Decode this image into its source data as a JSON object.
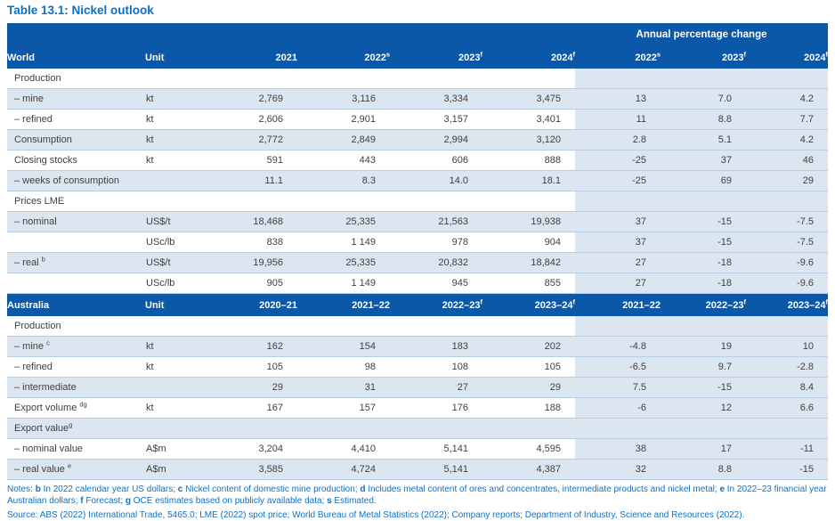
{
  "page": {
    "title": "Table 13.1: Nickel outlook"
  },
  "colors": {
    "header_blue": "#0b57a8",
    "row_shade": "#dce6f1",
    "row_border": "#b9cde5",
    "title_blue": "#0d6fc5",
    "notes_blue": "#1270c4",
    "body_text": "#3f3f3f"
  },
  "table": {
    "apc_header": "Annual percentage change",
    "world": {
      "name_header": "World",
      "unit_header": "Unit",
      "year_headers": [
        {
          "text": "2021"
        },
        {
          "text": "2022",
          "sup": "s"
        },
        {
          "text": "2023",
          "sup": "f"
        },
        {
          "text": "2024",
          "sup": "f"
        }
      ],
      "pct_headers": [
        {
          "text": "2022",
          "sup": "s"
        },
        {
          "text": "2023",
          "sup": "f"
        },
        {
          "text": "2024",
          "sup": "f"
        }
      ],
      "rows": [
        {
          "section": true,
          "label": "Production"
        },
        {
          "label": "– mine",
          "unit": "kt",
          "values": [
            "2,769",
            "3,116",
            "3,334",
            "3,475"
          ],
          "pct": [
            "13",
            "7.0",
            "4.2"
          ]
        },
        {
          "label": "– refined",
          "unit": "kt",
          "values": [
            "2,606",
            "2,901",
            "3,157",
            "3,401"
          ],
          "pct": [
            "11",
            "8.8",
            "7.7"
          ]
        },
        {
          "label": "Consumption",
          "unit": "kt",
          "values": [
            "2,772",
            "2,849",
            "2,994",
            "3,120"
          ],
          "pct": [
            "2.8",
            "5.1",
            "4.2"
          ]
        },
        {
          "label": "Closing stocks",
          "unit": "kt",
          "values": [
            "591",
            "443",
            "606",
            "888"
          ],
          "pct": [
            "-25",
            "37",
            "46"
          ]
        },
        {
          "label": "– weeks of consumption",
          "unit": "",
          "values": [
            "11.1",
            "8.3",
            "14.0",
            "18.1"
          ],
          "pct": [
            "-25",
            "69",
            "29"
          ]
        },
        {
          "section": true,
          "label": "Prices LME"
        },
        {
          "label": "– nominal",
          "unit": "US$/t",
          "values": [
            "18,468",
            "25,335",
            "21,563",
            "19,938"
          ],
          "pct": [
            "37",
            "-15",
            "-7.5"
          ]
        },
        {
          "label": "",
          "unit": "USc/lb",
          "values": [
            "838",
            "1 149",
            "978",
            "904"
          ],
          "pct": [
            "37",
            "-15",
            "-7.5"
          ]
        },
        {
          "label": "– real ",
          "sup": "b",
          "unit": "US$/t",
          "values": [
            "19,956",
            "25,335",
            "20,832",
            "18,842"
          ],
          "pct": [
            "27",
            "-18",
            "-9.6"
          ]
        },
        {
          "label": "",
          "unit": "USc/lb",
          "values": [
            "905",
            "1 149",
            "945",
            "855"
          ],
          "pct": [
            "27",
            "-18",
            "-9.6"
          ]
        }
      ]
    },
    "australia": {
      "name_header": "Australia",
      "unit_header": "Unit",
      "year_headers": [
        {
          "text": "2020–21"
        },
        {
          "text": "2021–22"
        },
        {
          "text": "2022–23",
          "sup": "f"
        },
        {
          "text": "2023–24",
          "sup": "f"
        }
      ],
      "pct_headers": [
        {
          "text": "2021–22"
        },
        {
          "text": "2022–23",
          "sup": "f"
        },
        {
          "text": "2023–24",
          "sup": "f"
        }
      ],
      "rows": [
        {
          "section": true,
          "label": "Production"
        },
        {
          "label": "– mine ",
          "sup": "c",
          "unit": "kt",
          "values": [
            "162",
            "154",
            "183",
            "202"
          ],
          "pct": [
            "-4.8",
            "19",
            "10"
          ]
        },
        {
          "label": "– refined",
          "unit": "kt",
          "values": [
            "105",
            "98",
            "108",
            "105"
          ],
          "pct": [
            "-6.5",
            "9.7",
            "-2.8"
          ]
        },
        {
          "label": "– intermediate",
          "unit": "",
          "values": [
            "29",
            "31",
            "27",
            "29"
          ],
          "pct": [
            "7.5",
            "-15",
            "8.4"
          ]
        },
        {
          "label": "Export volume ",
          "sup": "dg",
          "unit": "kt",
          "values": [
            "167",
            "157",
            "176",
            "188"
          ],
          "pct": [
            "-6",
            "12",
            "6.6"
          ]
        },
        {
          "section": true,
          "label": "Export value",
          "sup": "g"
        },
        {
          "label": "– nominal value",
          "unit": "A$m",
          "values": [
            "3,204",
            "4,410",
            "5,141",
            "4,595"
          ],
          "pct": [
            "38",
            "17",
            "-11"
          ]
        },
        {
          "label": "– real value ",
          "sup": "e",
          "unit": "A$m",
          "values": [
            "3,585",
            "4,724",
            "5,141",
            "4,387"
          ],
          "pct": [
            "32",
            "8.8",
            "-15"
          ]
        }
      ]
    }
  },
  "notes": {
    "segments": [
      {
        "t": "Notes: "
      },
      {
        "t": "b",
        "b": true
      },
      {
        "t": " In 2022 calendar year US dollars; "
      },
      {
        "t": "c",
        "b": true
      },
      {
        "t": " Nickel content of domestic mine production; "
      },
      {
        "t": "d",
        "b": true
      },
      {
        "t": " Includes metal content of ores and concentrates, intermediate products and nickel metal; "
      },
      {
        "t": "e",
        "b": true
      },
      {
        "t": " In 2022–23 financial year Australian dollars; "
      },
      {
        "t": "f",
        "b": true
      },
      {
        "t": " Forecast; "
      },
      {
        "t": "g",
        "b": true
      },
      {
        "t": " OCE estimates based on publicly available data; "
      },
      {
        "t": "s",
        "b": true
      },
      {
        "t": " Estimated."
      }
    ]
  },
  "source": {
    "text": "Source: ABS (2022) International Trade, 5465.0; LME (2022) spot price; World Bureau of Metal Statistics (2022); Company reports; Department of Industry, Science and Resources (2022)."
  }
}
